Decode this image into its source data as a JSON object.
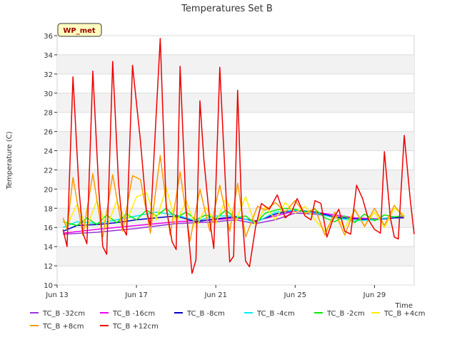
{
  "chart_data": {
    "type": "line",
    "title": "Temperatures Set B",
    "xlabel": "Time",
    "ylabel": "Temperature (C)",
    "badge": "WP_met",
    "x_start": "2024-06-13",
    "x_end": "2024-07-01",
    "xlim": [
      "Jun 13",
      "Jul 1"
    ],
    "ylim": [
      10,
      36
    ],
    "y_ticks": [
      10,
      12,
      14,
      16,
      18,
      20,
      22,
      24,
      26,
      28,
      30,
      32,
      34,
      36
    ],
    "x_ticks": [
      {
        "day": 0,
        "label": "Jun 13"
      },
      {
        "day": 4,
        "label": "Jun 17"
      },
      {
        "day": 8,
        "label": "Jun 21"
      },
      {
        "day": 12,
        "label": "Jun 25"
      },
      {
        "day": 16,
        "label": "Jun 29"
      }
    ],
    "grid": true,
    "legend_position": "bottom",
    "series": [
      {
        "name": "TC_B -32cm",
        "color": "#9933dd",
        "points": [
          [
            0.3,
            15.3
          ],
          [
            2,
            15.5
          ],
          [
            4,
            15.9
          ],
          [
            6,
            16.4
          ],
          [
            8,
            16.6
          ],
          [
            9,
            16.8
          ],
          [
            10,
            16.4
          ],
          [
            11,
            16.8
          ],
          [
            12,
            17.5
          ],
          [
            13,
            17.4
          ],
          [
            14,
            17.1
          ],
          [
            15,
            16.9
          ],
          [
            16,
            16.8
          ],
          [
            17,
            17.0
          ],
          [
            17.5,
            17.1
          ]
        ]
      },
      {
        "name": "TC_B -16cm",
        "color": "#ee00ee",
        "points": [
          [
            0.3,
            15.4
          ],
          [
            2,
            15.8
          ],
          [
            4,
            16.2
          ],
          [
            6,
            16.6
          ],
          [
            8,
            16.8
          ],
          [
            9,
            17.0
          ],
          [
            10,
            16.7
          ],
          [
            11,
            17.2
          ],
          [
            12,
            17.7
          ],
          [
            13,
            17.6
          ],
          [
            14,
            17.3
          ],
          [
            15,
            17.0
          ],
          [
            16,
            16.9
          ],
          [
            17,
            17.0
          ],
          [
            17.5,
            17.1
          ]
        ]
      }
    ],
    "series_more": [
      {
        "name": "TC_B -8cm",
        "color": "#0000cc",
        "points": [
          [
            0.3,
            15.6
          ],
          [
            1,
            16.2
          ],
          [
            2,
            16.3
          ],
          [
            3,
            16.5
          ],
          [
            4,
            16.8
          ],
          [
            5,
            17.0
          ],
          [
            6,
            17.2
          ],
          [
            7,
            16.6
          ],
          [
            8,
            16.9
          ],
          [
            9,
            17.1
          ],
          [
            10,
            16.6
          ],
          [
            11,
            17.4
          ],
          [
            12,
            17.8
          ],
          [
            13,
            17.6
          ],
          [
            14,
            17.1
          ],
          [
            15,
            16.9
          ],
          [
            16,
            16.8
          ],
          [
            17,
            17.0
          ],
          [
            17.5,
            17.0
          ]
        ]
      },
      {
        "name": "TC_B -4cm",
        "color": "#00eeee",
        "points": [
          [
            0.3,
            16.0
          ],
          [
            1,
            16.6
          ],
          [
            2,
            16.4
          ],
          [
            3,
            16.8
          ],
          [
            4,
            17.2
          ],
          [
            5,
            17.6
          ],
          [
            6,
            17.3
          ],
          [
            7,
            16.7
          ],
          [
            8,
            17.2
          ],
          [
            9,
            17.2
          ],
          [
            10,
            16.5
          ],
          [
            11,
            17.6
          ],
          [
            12,
            17.8
          ],
          [
            13,
            17.5
          ],
          [
            14,
            17.0
          ],
          [
            15,
            16.7
          ],
          [
            16,
            16.8
          ],
          [
            17,
            17.1
          ],
          [
            17.5,
            17.2
          ]
        ]
      },
      {
        "name": "TC_B -2cm",
        "color": "#00ee00",
        "points": [
          [
            0.3,
            16.6
          ],
          [
            1,
            16.2
          ],
          [
            1.5,
            17.0
          ],
          [
            2,
            16.3
          ],
          [
            2.5,
            17.3
          ],
          [
            3,
            16.5
          ],
          [
            3.5,
            17.4
          ],
          [
            4,
            16.8
          ],
          [
            4.5,
            17.8
          ],
          [
            5,
            17.2
          ],
          [
            5.5,
            18.0
          ],
          [
            6,
            17.0
          ],
          [
            6.5,
            17.6
          ],
          [
            7,
            16.8
          ],
          [
            7.5,
            17.3
          ],
          [
            8,
            16.9
          ],
          [
            8.5,
            17.8
          ],
          [
            9,
            17.0
          ],
          [
            9.5,
            17.2
          ],
          [
            10,
            16.4
          ],
          [
            10.5,
            17.5
          ],
          [
            11,
            17.8
          ],
          [
            11.5,
            18.0
          ],
          [
            12,
            17.9
          ],
          [
            12.5,
            17.6
          ],
          [
            13,
            17.9
          ],
          [
            13.5,
            17.0
          ],
          [
            14,
            16.6
          ],
          [
            14.5,
            17.2
          ],
          [
            15,
            16.5
          ],
          [
            15.5,
            17.4
          ],
          [
            16,
            16.7
          ],
          [
            16.5,
            17.3
          ],
          [
            17,
            17.1
          ],
          [
            17.5,
            17.2
          ]
        ]
      },
      {
        "name": "TC_B +4cm",
        "color": "#ffee00",
        "points": [
          [
            0.3,
            16.9
          ],
          [
            0.5,
            16.2
          ],
          [
            1,
            18.4
          ],
          [
            1.5,
            16.0
          ],
          [
            2,
            18.8
          ],
          [
            2.5,
            16.0
          ],
          [
            3,
            18.7
          ],
          [
            3.5,
            16.6
          ],
          [
            4,
            19.2
          ],
          [
            4.5,
            19.6
          ],
          [
            5,
            16.8
          ],
          [
            5.5,
            20.1
          ],
          [
            6,
            16.4
          ],
          [
            6.5,
            18.8
          ],
          [
            7,
            16.0
          ],
          [
            7.5,
            18.1
          ],
          [
            8,
            16.4
          ],
          [
            8.5,
            19.0
          ],
          [
            9,
            16.6
          ],
          [
            9.5,
            19.2
          ],
          [
            10,
            16.2
          ],
          [
            10.5,
            18.2
          ],
          [
            11,
            16.8
          ],
          [
            11.5,
            18.6
          ],
          [
            12,
            17.5
          ],
          [
            12.5,
            18.2
          ],
          [
            13,
            16.8
          ],
          [
            13.5,
            15.6
          ],
          [
            14,
            17.2
          ],
          [
            14.5,
            16.0
          ],
          [
            15,
            17.8
          ],
          [
            15.5,
            16.2
          ],
          [
            16,
            17.6
          ],
          [
            16.5,
            16.0
          ],
          [
            17,
            18.0
          ],
          [
            17.5,
            17.3
          ]
        ]
      },
      {
        "name": "TC_B +8cm",
        "color": "#ff9900",
        "points": [
          [
            0.3,
            17.0
          ],
          [
            0.5,
            15.8
          ],
          [
            0.8,
            21.2
          ],
          [
            1.3,
            15.2
          ],
          [
            1.8,
            21.6
          ],
          [
            2.3,
            15.0
          ],
          [
            2.8,
            21.5
          ],
          [
            3.3,
            15.6
          ],
          [
            3.8,
            21.4
          ],
          [
            4.2,
            21.0
          ],
          [
            4.7,
            15.4
          ],
          [
            5.2,
            23.5
          ],
          [
            5.7,
            15.2
          ],
          [
            6.2,
            21.8
          ],
          [
            6.7,
            14.6
          ],
          [
            7.2,
            20.0
          ],
          [
            7.7,
            15.6
          ],
          [
            8.2,
            20.4
          ],
          [
            8.7,
            15.6
          ],
          [
            9.1,
            20.6
          ],
          [
            9.5,
            15.0
          ],
          [
            10.1,
            18.2
          ],
          [
            10.5,
            17.8
          ],
          [
            11,
            18.6
          ],
          [
            11.5,
            17.6
          ],
          [
            12,
            18.8
          ],
          [
            12.5,
            17.4
          ],
          [
            13,
            18.0
          ],
          [
            13.5,
            15.2
          ],
          [
            14,
            17.6
          ],
          [
            14.5,
            15.2
          ],
          [
            15,
            17.9
          ],
          [
            15.5,
            16.1
          ],
          [
            16,
            18.0
          ],
          [
            16.5,
            16.2
          ],
          [
            17,
            18.3
          ],
          [
            17.5,
            17.0
          ]
        ]
      },
      {
        "name": "TC_B +12cm",
        "color": "#ee0000",
        "points": [
          [
            0.3,
            15.8
          ],
          [
            0.5,
            14.0
          ],
          [
            0.8,
            31.7
          ],
          [
            1.1,
            20.0
          ],
          [
            1.3,
            15.4
          ],
          [
            1.5,
            14.3
          ],
          [
            1.8,
            32.3
          ],
          [
            2.1,
            20.0
          ],
          [
            2.3,
            14.0
          ],
          [
            2.5,
            13.2
          ],
          [
            2.8,
            33.3
          ],
          [
            3.1,
            20.5
          ],
          [
            3.3,
            16.0
          ],
          [
            3.5,
            15.2
          ],
          [
            3.8,
            32.9
          ],
          [
            4.2,
            25.0
          ],
          [
            4.5,
            17.8
          ],
          [
            4.7,
            16.2
          ],
          [
            5.0,
            28.0
          ],
          [
            5.2,
            35.7
          ],
          [
            5.5,
            18.0
          ],
          [
            5.8,
            14.5
          ],
          [
            6.0,
            13.7
          ],
          [
            6.2,
            32.8
          ],
          [
            6.5,
            18.0
          ],
          [
            6.8,
            11.2
          ],
          [
            7.0,
            12.6
          ],
          [
            7.2,
            29.2
          ],
          [
            7.4,
            23.0
          ],
          [
            7.7,
            16.6
          ],
          [
            7.9,
            13.8
          ],
          [
            8.2,
            32.7
          ],
          [
            8.5,
            20.0
          ],
          [
            8.7,
            12.4
          ],
          [
            8.9,
            13.0
          ],
          [
            9.1,
            30.3
          ],
          [
            9.3,
            18.0
          ],
          [
            9.5,
            12.5
          ],
          [
            9.7,
            11.9
          ],
          [
            10.0,
            16.0
          ],
          [
            10.3,
            18.5
          ],
          [
            10.7,
            17.9
          ],
          [
            11.1,
            19.4
          ],
          [
            11.5,
            17.0
          ],
          [
            11.8,
            17.5
          ],
          [
            12.1,
            19.0
          ],
          [
            12.5,
            17.2
          ],
          [
            12.8,
            16.8
          ],
          [
            13.0,
            18.8
          ],
          [
            13.3,
            18.5
          ],
          [
            13.6,
            15.0
          ],
          [
            13.9,
            16.8
          ],
          [
            14.2,
            17.9
          ],
          [
            14.5,
            15.6
          ],
          [
            14.8,
            15.3
          ],
          [
            15.1,
            20.4
          ],
          [
            15.4,
            19.0
          ],
          [
            15.7,
            16.8
          ],
          [
            16.0,
            15.8
          ],
          [
            16.3,
            15.4
          ],
          [
            16.5,
            23.9
          ],
          [
            16.8,
            17.0
          ],
          [
            17.0,
            15.0
          ],
          [
            17.2,
            14.8
          ],
          [
            17.5,
            25.6
          ],
          [
            17.8,
            19.0
          ],
          [
            18.0,
            15.3
          ]
        ]
      }
    ]
  }
}
